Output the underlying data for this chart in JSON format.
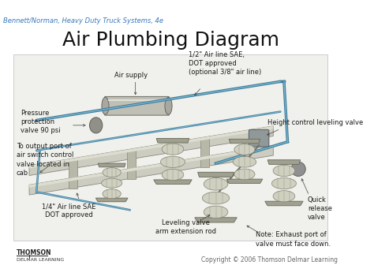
{
  "title": "Air Plumbing Diagram",
  "subtitle": "Bennett/Norman, Heavy Duty Truck Systems, 4e",
  "subtitle_color": "#3a7abf",
  "copyright": "Copyright © 2006 Thomson Delmar Learning",
  "bg_color": "#ffffff",
  "title_fontsize": 18,
  "subtitle_fontsize": 6,
  "copyright_fontsize": 5.5,
  "label_fontsize": 6,
  "label_color": "#1a1a1a",
  "line_color": "#3a7a9a",
  "rail_face": "#d8d8c8",
  "rail_edge": "#888878",
  "tank_face": "#c0bfb0",
  "tank_edge": "#787870",
  "spring_face": "#d5d5c5",
  "spring_edge": "#808070",
  "plate_face": "#a0a090",
  "plate_edge": "#606050"
}
